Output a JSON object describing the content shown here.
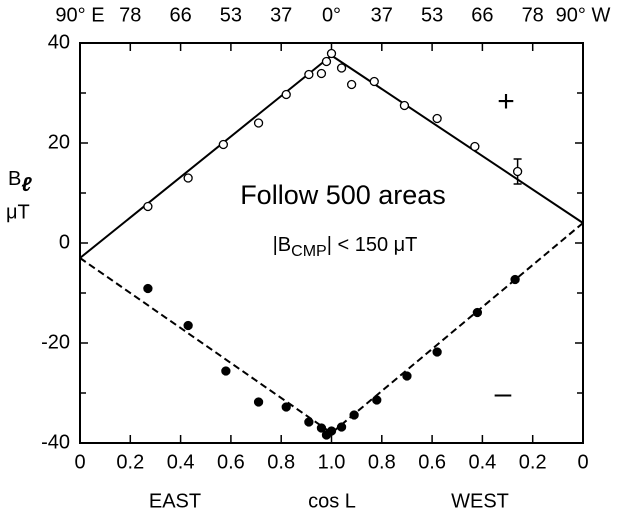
{
  "chart_data": {
    "type": "scatter",
    "xlim": [
      0,
      2
    ],
    "ylim": [
      -40,
      40
    ],
    "xticks": [
      0,
      0.2,
      0.4,
      0.6,
      0.8,
      {
        "value": 1,
        "label": "1.0"
      },
      {
        "value": 1.2,
        "label": "0.8"
      },
      {
        "value": 1.4,
        "label": "0.6"
      },
      {
        "value": 1.6,
        "label": "0.4"
      },
      {
        "value": 1.8,
        "label": "0.2"
      },
      {
        "value": 2,
        "label": "0"
      }
    ],
    "x2ticks": [
      {
        "value": 0,
        "label": "90° E"
      },
      {
        "value": 0.2,
        "label": "78"
      },
      {
        "value": 0.4,
        "label": "66"
      },
      {
        "value": 0.6,
        "label": "53"
      },
      {
        "value": 0.8,
        "label": "37"
      },
      {
        "value": 1,
        "label": "0°"
      },
      {
        "value": 1.2,
        "label": "37"
      },
      {
        "value": 1.4,
        "label": "53"
      },
      {
        "value": 1.6,
        "label": "66"
      },
      {
        "value": 1.8,
        "label": "78"
      },
      {
        "value": 2,
        "label": "90° W"
      }
    ],
    "yticks": [
      40,
      20,
      0,
      -20,
      -40
    ],
    "yminorticks": [
      30,
      10,
      -10,
      -30
    ],
    "ylabel": [
      "B",
      "ℓ",
      "μT"
    ],
    "xlabels": [
      "EAST",
      "cos L",
      "WEST"
    ],
    "annotations": {
      "plus": "+",
      "minus": "–",
      "title": "Follow 500 areas",
      "condition": [
        "|B",
        "CMP",
        "| < 150 μT"
      ]
    },
    "series": [
      {
        "marker": "open",
        "color": "#000000",
        "x": [
          0.27,
          0.43,
          0.57,
          0.71,
          0.82,
          0.91,
          0.96,
          0.98,
          1.0,
          1.04,
          1.08,
          1.17,
          1.29,
          1.42,
          1.57,
          1.74
        ],
        "values": [
          7.3,
          13,
          19.7,
          24,
          29.7,
          33.7,
          33.9,
          36.3,
          37.9,
          35,
          31.7,
          32.3,
          27.5,
          24.9,
          19.3,
          14.3
        ],
        "errors": [
          null,
          null,
          null,
          null,
          null,
          null,
          null,
          null,
          null,
          null,
          null,
          null,
          null,
          null,
          null,
          2.5
        ]
      },
      {
        "marker": "filled",
        "color": "#000000",
        "x": [
          0.27,
          0.43,
          0.58,
          0.71,
          0.82,
          0.91,
          0.96,
          0.98,
          1.0,
          1.04,
          1.09,
          1.18,
          1.3,
          1.42,
          1.58,
          1.73
        ],
        "values": [
          -9.1,
          -16.5,
          -25.6,
          -31.8,
          -32.8,
          -35.8,
          -37,
          -38.4,
          -37.6,
          -36.8,
          -34.4,
          -31.4,
          -26.6,
          -21.8,
          -13.9,
          -7.3
        ]
      }
    ],
    "lines": [
      {
        "style": "solid",
        "x": [
          0,
          1,
          2
        ],
        "values": [
          -3,
          37.5,
          4
        ]
      },
      {
        "style": "dashed",
        "x": [
          0,
          1,
          2
        ],
        "values": [
          -3,
          -38,
          4
        ]
      }
    ]
  }
}
